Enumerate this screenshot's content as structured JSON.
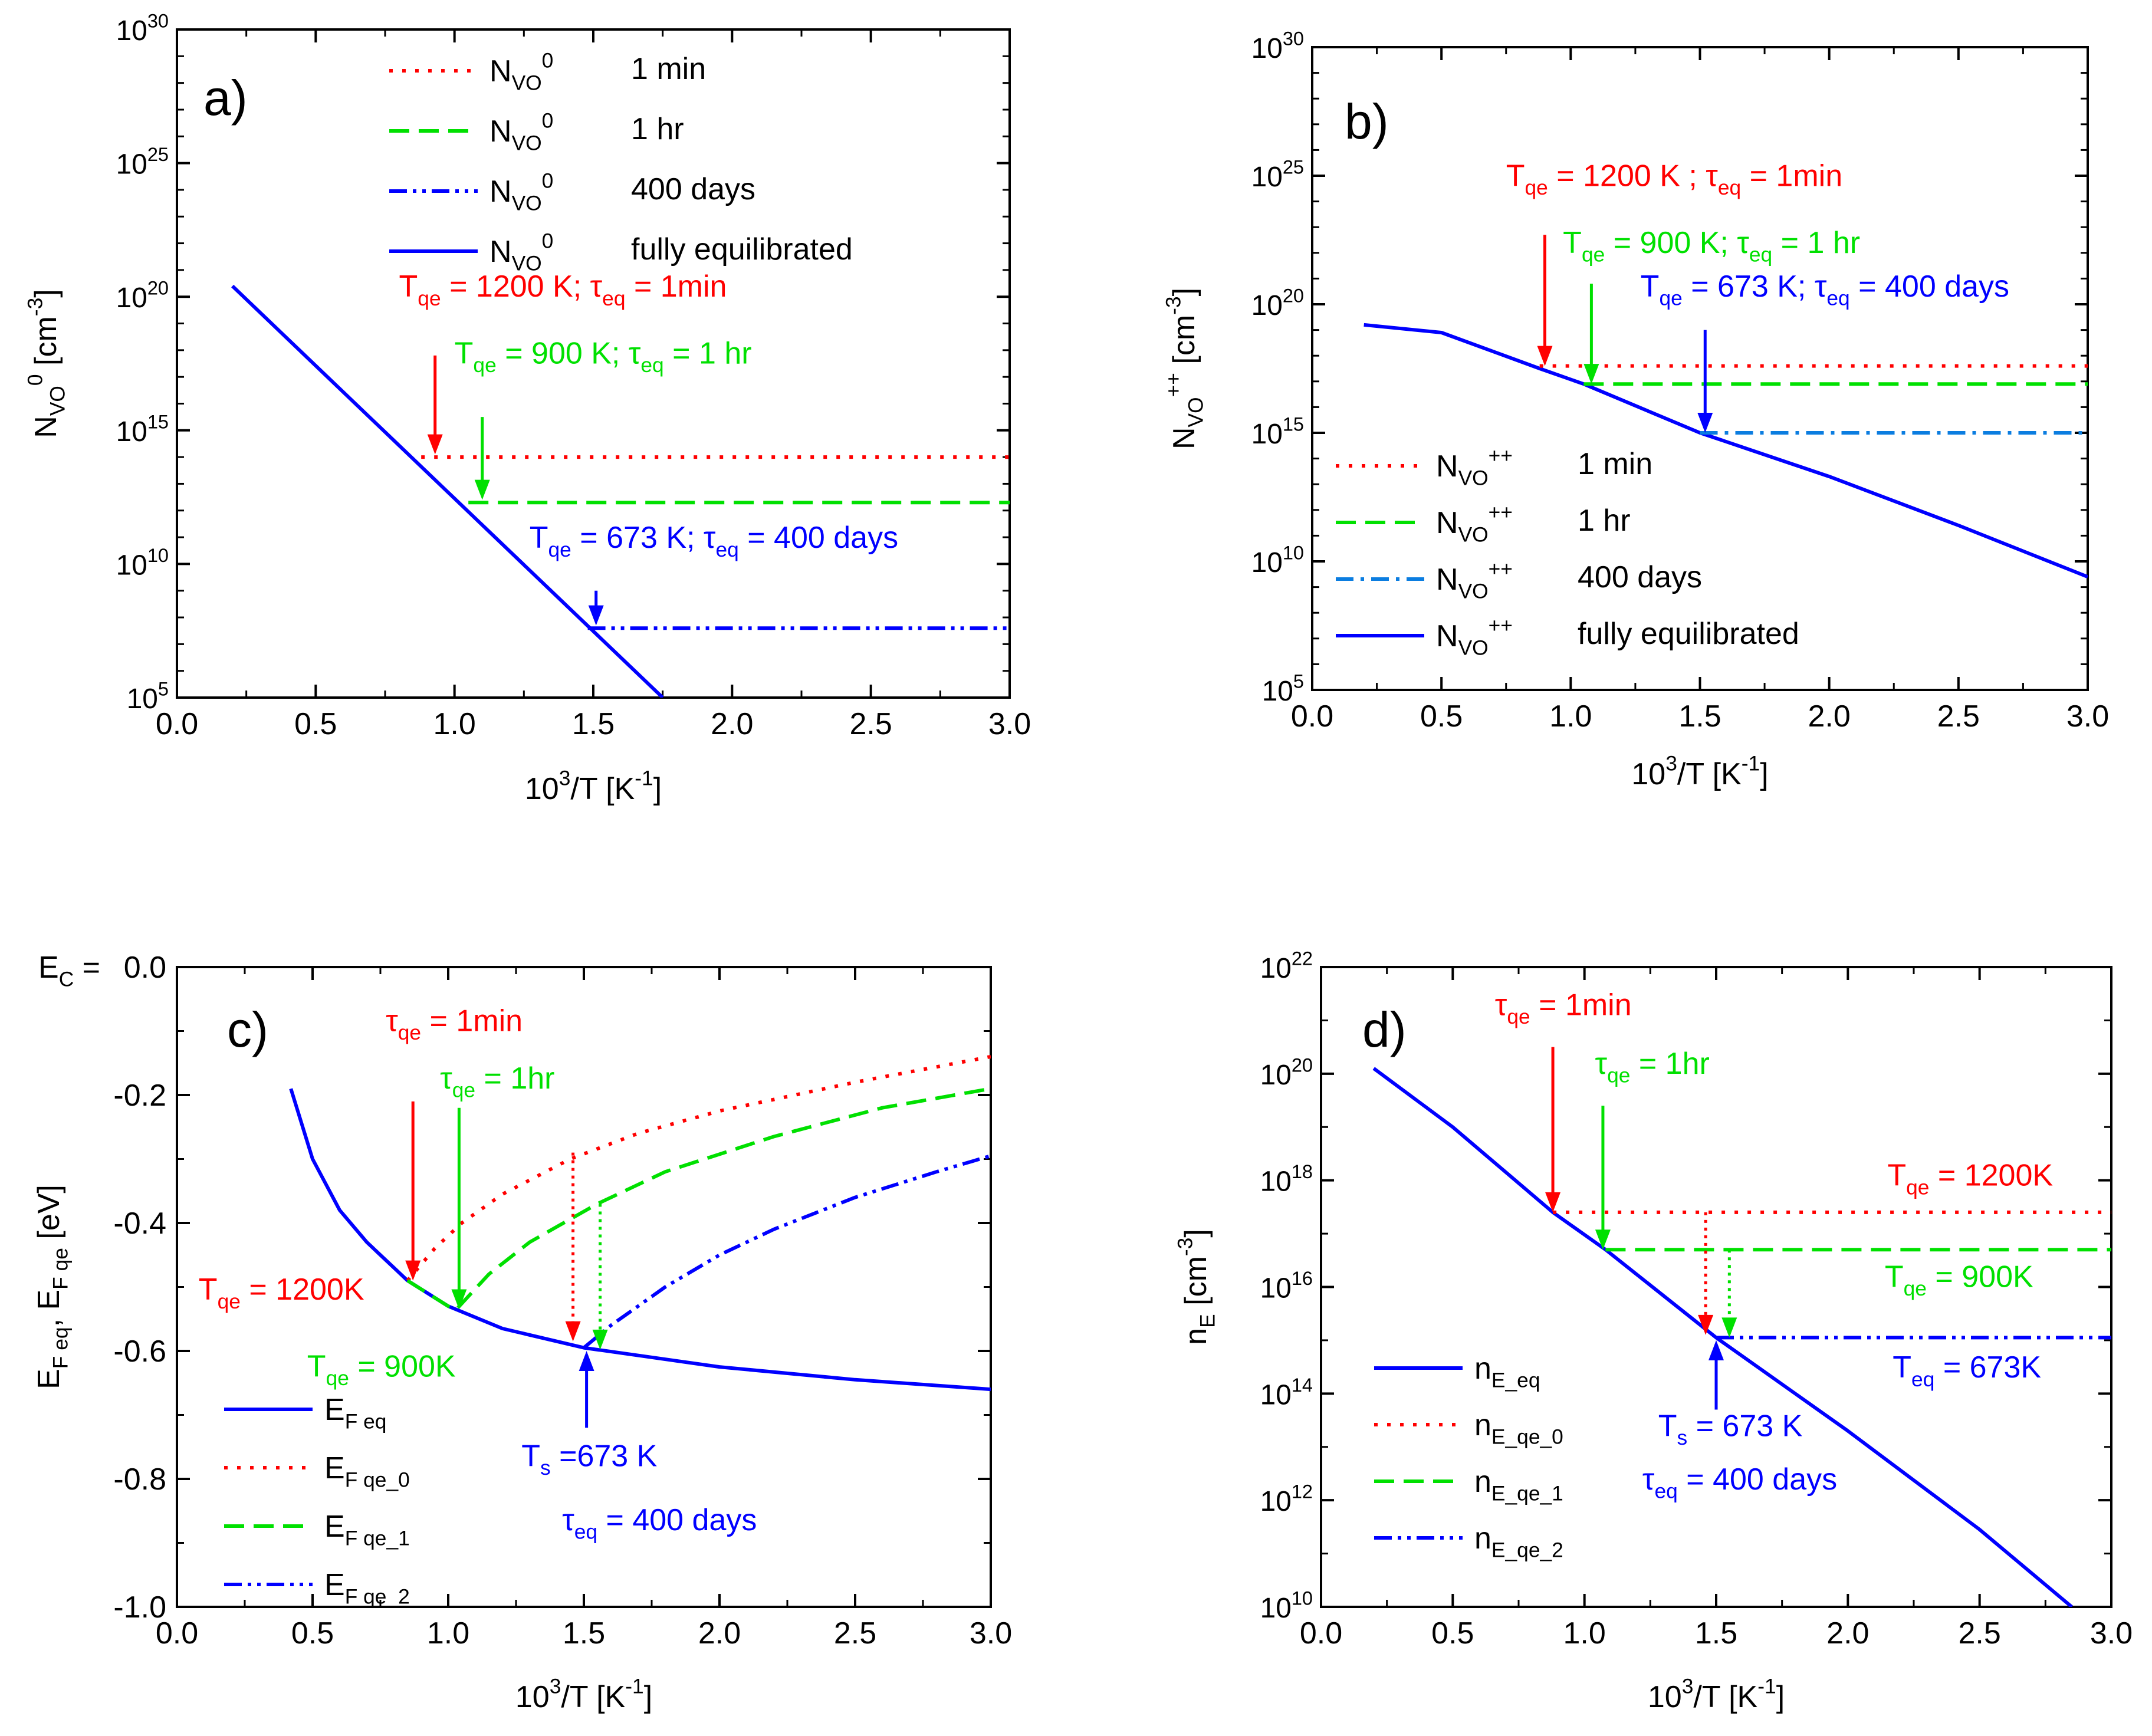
{
  "figure": {
    "colors": {
      "red": "#ff0000",
      "green": "#00e000",
      "blue": "#0000ff",
      "lightblue": "#0b7de0",
      "axis": "#000000"
    }
  },
  "chart_data": [
    {
      "id": "a",
      "type": "line",
      "panel_label": "a)",
      "y_scale": "log",
      "ylim_exp": [
        5,
        30
      ],
      "y_ticks_exp": [
        5,
        10,
        15,
        20,
        25,
        30
      ],
      "xlim": [
        0,
        3
      ],
      "x_ticks": [
        "0.0",
        "0.5",
        "1.0",
        "1.5",
        "2.0",
        "2.5",
        "3.0"
      ],
      "xlabel": {
        "base": "10",
        "sup1": "3",
        "mid": "/T [K",
        "sup2": "-1",
        "end": "]"
      },
      "ylabel": {
        "base": "N",
        "sub": "VO",
        "sup1": "0",
        "mid": " [cm",
        "sup2": "-3",
        "end": "]"
      },
      "series": [
        {
          "key": "full",
          "name": "N",
          "sub": "VO",
          "sup": "0",
          "desc": "fully equilibrated",
          "color": "blue",
          "dash": "solid",
          "points": [
            [
              0.2,
              20.4
            ],
            [
              1.75,
              5.0
            ]
          ]
        },
        {
          "key": "1min",
          "name": "N",
          "sub": "VO",
          "sup": "0",
          "desc": "1 min",
          "color": "red",
          "dash": "dot",
          "points": [
            [
              0.88,
              14.0
            ],
            [
              3.0,
              14.0
            ]
          ]
        },
        {
          "key": "1hr",
          "name": "N",
          "sub": "VO",
          "sup": "0",
          "desc": "1 hr",
          "color": "green",
          "dash": "dash",
          "points": [
            [
              1.05,
              12.3
            ],
            [
              3.0,
              12.3
            ]
          ]
        },
        {
          "key": "400d",
          "name": "N",
          "sub": "VO",
          "sup": "0",
          "desc": " 400 days",
          "color": "blue",
          "dash": "dashdotdot",
          "points": [
            [
              1.48,
              7.6
            ],
            [
              3.0,
              7.6
            ]
          ]
        }
      ],
      "annotations": [
        {
          "color": "red",
          "parts": [
            "T",
            "qe",
            " = 1200 K; τ",
            "eq",
            " = 1min"
          ],
          "x": 0.8,
          "y": 20.0
        },
        {
          "color": "green",
          "parts": [
            "T",
            "qe",
            " = 900 K; τ",
            "eq",
            " = 1 hr"
          ],
          "x": 1.0,
          "y": 17.5
        },
        {
          "color": "blue",
          "parts": [
            "T",
            "qe",
            " = 673 K; τ",
            "eq",
            " = 400 days"
          ],
          "x": 1.27,
          "y": 10.6
        }
      ],
      "arrows": [
        {
          "color": "red",
          "x": 0.93,
          "y_from": 17.8,
          "y_to": 14.1
        },
        {
          "color": "green",
          "x": 1.1,
          "y_from": 15.5,
          "y_to": 12.4
        },
        {
          "color": "blue",
          "x": 1.51,
          "y_from": 9.0,
          "y_to": 7.7
        }
      ]
    },
    {
      "id": "b",
      "type": "line",
      "panel_label": "b)",
      "y_scale": "log",
      "ylim_exp": [
        5,
        30
      ],
      "y_ticks_exp": [
        5,
        10,
        15,
        20,
        25,
        30
      ],
      "xlim": [
        0,
        3
      ],
      "x_ticks": [
        "0.0",
        "0.5",
        "1.0",
        "1.5",
        "2.0",
        "2.5",
        "3.0"
      ],
      "xlabel": {
        "base": "10",
        "sup1": "3",
        "mid": "/T [K",
        "sup2": "-1",
        "end": "]"
      },
      "ylabel": {
        "base": "N",
        "sub": "VO",
        "sup1": "++",
        "mid": " [cm",
        "sup2": "-3",
        "end": "]"
      },
      "series": [
        {
          "key": "full",
          "name": "N",
          "sub": "VO",
          "sup": "++",
          "desc": "fully equilibrated",
          "color": "blue",
          "dash": "solid",
          "points": [
            [
              0.2,
              19.2
            ],
            [
              0.5,
              18.9
            ],
            [
              0.88,
              17.5
            ],
            [
              1.05,
              16.9
            ],
            [
              1.5,
              15.0
            ],
            [
              2.0,
              13.3
            ],
            [
              2.5,
              11.4
            ],
            [
              3.0,
              9.4
            ]
          ]
        },
        {
          "key": "1min",
          "name": "N",
          "sub": "VO",
          "sup": "++",
          "desc": "1 min",
          "color": "red",
          "dash": "dot",
          "points": [
            [
              0.88,
              17.6
            ],
            [
              3.0,
              17.6
            ]
          ]
        },
        {
          "key": "1hr",
          "name": "N",
          "sub": "VO",
          "sup": "++",
          "desc": "1 hr",
          "color": "green",
          "dash": "dash",
          "points": [
            [
              1.05,
              16.9
            ],
            [
              3.0,
              16.9
            ]
          ]
        },
        {
          "key": "400d",
          "name": "N",
          "sub": "VO",
          "sup": "++",
          "desc": "400 days",
          "color": "lightblue",
          "dash": "dashdot",
          "points": [
            [
              1.5,
              15.0
            ],
            [
              3.0,
              15.0
            ]
          ]
        }
      ],
      "annotations": [
        {
          "color": "red",
          "parts": [
            "T",
            "qe",
            " = 1200 K ; τ",
            "eq",
            " = 1min"
          ],
          "x": 0.75,
          "y": 24.6
        },
        {
          "color": "green",
          "parts": [
            "T",
            "qe",
            " = 900 K; τ",
            "eq",
            " = 1 hr"
          ],
          "x": 0.97,
          "y": 22.0
        },
        {
          "color": "blue",
          "parts": [
            "T",
            "qe",
            " = 673 K; τ",
            "eq",
            " = 400 days"
          ],
          "x": 1.27,
          "y": 20.3
        }
      ],
      "arrows": [
        {
          "color": "red",
          "x": 0.9,
          "y_from": 22.7,
          "y_to": 17.6
        },
        {
          "color": "green",
          "x": 1.08,
          "y_from": 20.8,
          "y_to": 16.9
        },
        {
          "color": "blue",
          "x": 1.52,
          "y_from": 19.0,
          "y_to": 15.0
        }
      ]
    },
    {
      "id": "c",
      "type": "line",
      "panel_label": "c)",
      "y_scale": "linear",
      "ylim": [
        -1.0,
        0.0
      ],
      "y_ticks": [
        "-1.0",
        "-0.8",
        "-0.6",
        "-0.4",
        "-0.2",
        "0.0"
      ],
      "xlim": [
        0,
        3
      ],
      "x_ticks": [
        "0.0",
        "0.5",
        "1.0",
        "1.5",
        "2.0",
        "2.5",
        "3.0"
      ],
      "xlabel": {
        "base": "10",
        "sup1": "3",
        "mid": "/T [K",
        "sup2": "-1",
        "end": "]"
      },
      "ylabel": {
        "p1": "E",
        "s1": "F eq",
        "p2": ", E",
        "s2": "F qe",
        "p3": " [eV]"
      },
      "corner_label": {
        "base": "E",
        "sub": "C",
        "rest": " = "
      },
      "series": [
        {
          "key": "eq",
          "name": "E",
          "sub": "F eq",
          "color": "blue",
          "dash": "solid",
          "points": [
            [
              0.42,
              -0.19
            ],
            [
              0.5,
              -0.3
            ],
            [
              0.6,
              -0.38
            ],
            [
              0.7,
              -0.43
            ],
            [
              0.8,
              -0.47
            ],
            [
              0.85,
              -0.49
            ],
            [
              1.0,
              -0.53
            ],
            [
              1.2,
              -0.565
            ],
            [
              1.5,
              -0.595
            ],
            [
              2.0,
              -0.625
            ],
            [
              2.5,
              -0.645
            ],
            [
              3.0,
              -0.66
            ]
          ]
        },
        {
          "key": "qe0",
          "name": "E",
          "sub": "F qe_0",
          "color": "red",
          "dash": "dot",
          "points": [
            [
              0.85,
              -0.49
            ],
            [
              0.95,
              -0.44
            ],
            [
              1.05,
              -0.4
            ],
            [
              1.2,
              -0.355
            ],
            [
              1.45,
              -0.3
            ],
            [
              1.7,
              -0.26
            ],
            [
              2.0,
              -0.225
            ],
            [
              2.5,
              -0.18
            ],
            [
              3.0,
              -0.14
            ]
          ]
        },
        {
          "key": "qe1",
          "name": "E",
          "sub": "F qe_1",
          "color": "green",
          "dash": "dash",
          "points": [
            [
              0.85,
              -0.49
            ],
            [
              1.0,
              -0.53
            ],
            [
              1.03,
              -0.535
            ],
            [
              1.15,
              -0.48
            ],
            [
              1.3,
              -0.43
            ],
            [
              1.55,
              -0.37
            ],
            [
              1.8,
              -0.32
            ],
            [
              2.2,
              -0.265
            ],
            [
              2.6,
              -0.22
            ],
            [
              3.0,
              -0.19
            ]
          ]
        },
        {
          "key": "qe2",
          "name": "E",
          "sub": "F qe_2",
          "color": "blue",
          "dash": "dashdotdot",
          "points": [
            [
              1.5,
              -0.595
            ],
            [
              1.6,
              -0.56
            ],
            [
              1.8,
              -0.5
            ],
            [
              2.0,
              -0.45
            ],
            [
              2.2,
              -0.41
            ],
            [
              2.5,
              -0.36
            ],
            [
              2.8,
              -0.32
            ],
            [
              3.0,
              -0.295
            ]
          ]
        }
      ],
      "annotations": [
        {
          "color": "red",
          "parts": [
            "τ",
            "qe",
            " = 1min"
          ],
          "x": 0.77,
          "y": -0.1
        },
        {
          "color": "green",
          "parts": [
            "τ",
            "qe",
            " = 1hr"
          ],
          "x": 0.97,
          "y": -0.19
        },
        {
          "color": "red",
          "parts": [
            "T",
            "qe",
            " = 1200K"
          ],
          "x": 0.08,
          "y": -0.52
        },
        {
          "color": "green",
          "parts": [
            "T",
            "qe",
            " = 900K"
          ],
          "x": 0.48,
          "y": -0.64
        },
        {
          "color": "blue",
          "parts": [
            "T",
            "s",
            " =673 K"
          ],
          "x": 1.27,
          "y": -0.78
        },
        {
          "color": "blue",
          "parts": [
            "τ",
            "eq",
            " = 400 days"
          ],
          "x": 1.42,
          "y": -0.88
        }
      ],
      "arrows": [
        {
          "color": "red",
          "x": 0.87,
          "y_from": -0.21,
          "y_to": -0.49
        },
        {
          "color": "green",
          "x": 1.04,
          "y_from": -0.22,
          "y_to": -0.535
        },
        {
          "color": "red",
          "x": 1.46,
          "y_from": -0.29,
          "y_to": -0.585,
          "dotted": true
        },
        {
          "color": "green",
          "x": 1.56,
          "y_from": -0.37,
          "y_to": -0.598,
          "dotted": true
        },
        {
          "color": "blue",
          "x": 1.51,
          "y_from": -0.72,
          "y_to": -0.6
        }
      ]
    },
    {
      "id": "d",
      "type": "line",
      "panel_label": "d)",
      "y_scale": "log",
      "ylim_exp": [
        10,
        22
      ],
      "y_ticks_exp": [
        10,
        12,
        14,
        16,
        18,
        20,
        22
      ],
      "xlim": [
        0,
        3
      ],
      "x_ticks": [
        "0.0",
        "0.5",
        "1.0",
        "1.5",
        "2.0",
        "2.5",
        "3.0"
      ],
      "xlabel": {
        "base": "10",
        "sup1": "3",
        "mid": "/T [K",
        "sup2": "-1",
        "end": "]"
      },
      "ylabel": {
        "base": "n",
        "sub": "E",
        "mid": " [cm",
        "sup2": "-3",
        "end": "]"
      },
      "series": [
        {
          "key": "eq",
          "name": "n",
          "sub": "E_eq",
          "color": "blue",
          "dash": "solid",
          "points": [
            [
              0.2,
              20.1
            ],
            [
              0.5,
              19.0
            ],
            [
              0.88,
              17.4
            ],
            [
              1.08,
              16.7
            ],
            [
              1.5,
              15.05
            ],
            [
              2.0,
              13.3
            ],
            [
              2.5,
              11.45
            ],
            [
              2.85,
              10.0
            ]
          ]
        },
        {
          "key": "qe0",
          "name": "n",
          "sub": "E_qe_0",
          "color": "red",
          "dash": "dot",
          "points": [
            [
              0.88,
              17.4
            ],
            [
              3.0,
              17.4
            ]
          ]
        },
        {
          "key": "qe1",
          "name": "n",
          "sub": "E_qe_1",
          "color": "green",
          "dash": "dash",
          "points": [
            [
              1.08,
              16.7
            ],
            [
              3.0,
              16.7
            ]
          ]
        },
        {
          "key": "qe2",
          "name": "n",
          "sub": "E_qe_2",
          "color": "blue",
          "dash": "dashdotdot",
          "points": [
            [
              1.5,
              15.05
            ],
            [
              3.0,
              15.05
            ]
          ]
        }
      ],
      "annotations": [
        {
          "color": "red",
          "parts": [
            "τ",
            "qe",
            " = 1min"
          ],
          "x": 0.66,
          "y": 21.1
        },
        {
          "color": "green",
          "parts": [
            "τ",
            "qe",
            " = 1hr"
          ],
          "x": 1.04,
          "y": 20.0
        },
        {
          "color": "red",
          "parts": [
            "T",
            "qe",
            " = 1200K"
          ],
          "x": 2.15,
          "y": 17.9
        },
        {
          "color": "green",
          "parts": [
            "T",
            "qe",
            " = 900K"
          ],
          "x": 2.14,
          "y": 16.0
        },
        {
          "color": "blue",
          "parts": [
            "T",
            "eq",
            " = 673K"
          ],
          "x": 2.17,
          "y": 14.3
        },
        {
          "color": "blue",
          "parts": [
            "T",
            "s",
            " = 673 K"
          ],
          "x": 1.28,
          "y": 13.2
        },
        {
          "color": "blue",
          "parts": [
            "τ",
            "eq",
            " = 400 days"
          ],
          "x": 1.22,
          "y": 12.2
        }
      ],
      "arrows": [
        {
          "color": "red",
          "x": 0.88,
          "y_from": 20.5,
          "y_to": 17.4
        },
        {
          "color": "green",
          "x": 1.07,
          "y_from": 19.4,
          "y_to": 16.7
        },
        {
          "color": "red",
          "x": 1.46,
          "y_from": 17.4,
          "y_to": 15.1,
          "dotted": true
        },
        {
          "color": "green",
          "x": 1.55,
          "y_from": 16.7,
          "y_to": 15.05,
          "dotted": true
        },
        {
          "color": "blue",
          "x": 1.5,
          "y_from": 13.7,
          "y_to": 15.0
        }
      ]
    }
  ]
}
